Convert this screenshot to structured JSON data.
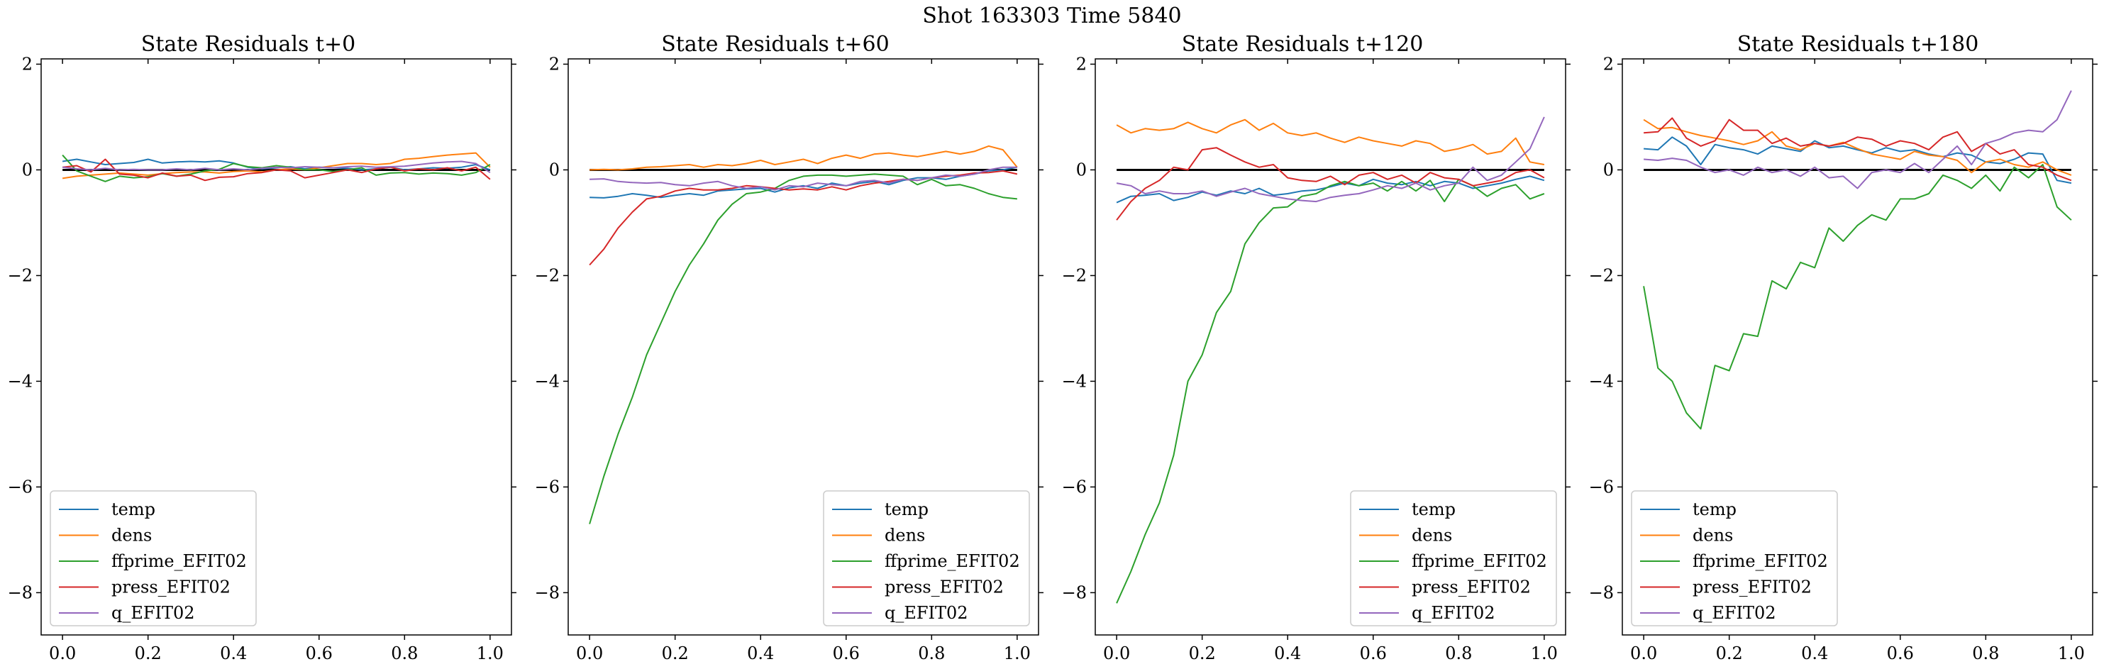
{
  "figure": {
    "suptitle": "Shot 163303   Time 5840"
  },
  "chart_data": [
    {
      "type": "line",
      "title": "State Residuals t+0",
      "xlabel": "",
      "ylabel": "",
      "xlim": [
        -0.05,
        1.05
      ],
      "ylim": [
        -8.8,
        2.1
      ],
      "xticks": [
        "0.0",
        "0.2",
        "0.4",
        "0.6",
        "0.8",
        "1.0"
      ],
      "yticks": [
        "2",
        "0",
        "−2",
        "−4",
        "−6",
        "−8"
      ],
      "hline": 0,
      "legend_position": "lower left",
      "x_step": 0.0333,
      "series": [
        {
          "name": "temp",
          "color": "#1f77b4",
          "values": [
            0.16,
            0.2,
            0.15,
            0.1,
            0.12,
            0.14,
            0.2,
            0.13,
            0.15,
            0.16,
            0.15,
            0.17,
            0.13,
            0.05,
            0.02,
            0.04,
            0.06,
            0.02,
            0.05,
            0.04,
            0.03,
            0.0,
            0.02,
            0.05,
            0.0,
            0.02,
            0.04,
            0.03,
            0.05,
            0.1,
            0.0
          ]
        },
        {
          "name": "dens",
          "color": "#ff7f0e",
          "values": [
            -0.16,
            -0.12,
            -0.1,
            -0.08,
            -0.06,
            -0.08,
            -0.1,
            -0.07,
            -0.05,
            -0.04,
            -0.04,
            -0.06,
            -0.03,
            -0.02,
            -0.04,
            0.0,
            0.02,
            0.0,
            0.04,
            0.08,
            0.12,
            0.12,
            0.1,
            0.12,
            0.2,
            0.22,
            0.25,
            0.28,
            0.3,
            0.32,
            0.05
          ]
        },
        {
          "name": "ffprime_EFIT02",
          "color": "#2ca02c",
          "values": [
            0.28,
            -0.02,
            -0.12,
            -0.22,
            -0.12,
            -0.15,
            -0.13,
            -0.07,
            -0.12,
            -0.08,
            -0.02,
            0.01,
            0.12,
            0.06,
            0.04,
            0.08,
            0.05,
            0.0,
            0.0,
            -0.03,
            0.0,
            0.04,
            -0.1,
            -0.06,
            -0.05,
            -0.08,
            -0.06,
            -0.07,
            -0.1,
            -0.05,
            0.1
          ]
        },
        {
          "name": "press_EFIT02",
          "color": "#d62728",
          "values": [
            0.05,
            0.08,
            -0.04,
            0.2,
            -0.08,
            -0.1,
            -0.15,
            -0.06,
            -0.12,
            -0.1,
            -0.2,
            -0.14,
            -0.13,
            -0.07,
            -0.05,
            0.0,
            -0.02,
            -0.15,
            -0.1,
            -0.05,
            0.0,
            -0.05,
            0.02,
            0.05,
            -0.02,
            0.02,
            0.0,
            0.04,
            -0.02,
            0.05,
            -0.18
          ]
        },
        {
          "name": "q_EFIT02",
          "color": "#9467bd",
          "values": [
            0.05,
            0.02,
            0.0,
            0.03,
            0.0,
            0.01,
            0.0,
            0.0,
            0.02,
            0.0,
            0.03,
            0.0,
            0.02,
            0.0,
            0.03,
            0.05,
            0.04,
            0.06,
            0.05,
            0.04,
            0.06,
            0.07,
            0.05,
            0.06,
            0.07,
            0.1,
            0.13,
            0.15,
            0.16,
            0.12,
            -0.05
          ]
        }
      ]
    },
    {
      "type": "line",
      "title": "State Residuals t+60",
      "xlabel": "",
      "ylabel": "",
      "xlim": [
        -0.05,
        1.05
      ],
      "ylim": [
        -8.8,
        2.1
      ],
      "xticks": [
        "0.0",
        "0.2",
        "0.4",
        "0.6",
        "0.8",
        "1.0"
      ],
      "yticks": [
        "2",
        "0",
        "−2",
        "−4",
        "−6",
        "−8"
      ],
      "hline": 0,
      "legend_position": "lower right",
      "x_step": 0.0333,
      "series": [
        {
          "name": "temp",
          "color": "#1f77b4",
          "values": [
            -0.52,
            -0.53,
            -0.5,
            -0.45,
            -0.48,
            -0.52,
            -0.48,
            -0.45,
            -0.48,
            -0.4,
            -0.38,
            -0.36,
            -0.35,
            -0.42,
            -0.34,
            -0.3,
            -0.35,
            -0.25,
            -0.3,
            -0.25,
            -0.22,
            -0.28,
            -0.2,
            -0.15,
            -0.15,
            -0.18,
            -0.12,
            -0.08,
            -0.02,
            0.0,
            0.05
          ]
        },
        {
          "name": "dens",
          "color": "#ff7f0e",
          "values": [
            0.0,
            0.01,
            0.0,
            0.02,
            0.05,
            0.06,
            0.08,
            0.1,
            0.05,
            0.1,
            0.08,
            0.12,
            0.18,
            0.1,
            0.15,
            0.2,
            0.12,
            0.22,
            0.28,
            0.22,
            0.3,
            0.32,
            0.28,
            0.25,
            0.3,
            0.35,
            0.3,
            0.35,
            0.45,
            0.38,
            0.05
          ]
        },
        {
          "name": "ffprime_EFIT02",
          "color": "#2ca02c",
          "values": [
            -6.7,
            -5.8,
            -5.0,
            -4.3,
            -3.5,
            -2.9,
            -2.3,
            -1.8,
            -1.4,
            -0.95,
            -0.65,
            -0.45,
            -0.42,
            -0.35,
            -0.2,
            -0.12,
            -0.1,
            -0.1,
            -0.12,
            -0.1,
            -0.08,
            -0.1,
            -0.12,
            -0.28,
            -0.18,
            -0.3,
            -0.28,
            -0.35,
            -0.45,
            -0.52,
            -0.55
          ]
        },
        {
          "name": "press_EFIT02",
          "color": "#d62728",
          "values": [
            -1.8,
            -1.5,
            -1.1,
            -0.8,
            -0.55,
            -0.5,
            -0.4,
            -0.35,
            -0.38,
            -0.38,
            -0.35,
            -0.3,
            -0.32,
            -0.35,
            -0.38,
            -0.36,
            -0.38,
            -0.32,
            -0.38,
            -0.3,
            -0.25,
            -0.22,
            -0.18,
            -0.2,
            -0.15,
            -0.12,
            -0.1,
            -0.06,
            -0.05,
            -0.02,
            -0.08
          ]
        },
        {
          "name": "q_EFIT02",
          "color": "#9467bd",
          "values": [
            -0.18,
            -0.17,
            -0.22,
            -0.24,
            -0.25,
            -0.24,
            -0.28,
            -0.3,
            -0.25,
            -0.22,
            -0.3,
            -0.35,
            -0.32,
            -0.38,
            -0.3,
            -0.32,
            -0.25,
            -0.28,
            -0.3,
            -0.22,
            -0.2,
            -0.25,
            -0.18,
            -0.2,
            -0.15,
            -0.1,
            -0.12,
            -0.08,
            0.0,
            0.05,
            0.05
          ]
        }
      ]
    },
    {
      "type": "line",
      "title": "State Residuals t+120",
      "xlabel": "",
      "ylabel": "",
      "xlim": [
        -0.05,
        1.05
      ],
      "ylim": [
        -8.8,
        2.1
      ],
      "xticks": [
        "0.0",
        "0.2",
        "0.4",
        "0.6",
        "0.8",
        "1.0"
      ],
      "yticks": [
        "2",
        "0",
        "−2",
        "−4",
        "−6",
        "−8"
      ],
      "hline": 0,
      "legend_position": "lower right",
      "x_step": 0.0333,
      "series": [
        {
          "name": "temp",
          "color": "#1f77b4",
          "values": [
            -0.62,
            -0.5,
            -0.48,
            -0.45,
            -0.58,
            -0.52,
            -0.42,
            -0.48,
            -0.4,
            -0.45,
            -0.35,
            -0.48,
            -0.45,
            -0.4,
            -0.38,
            -0.32,
            -0.25,
            -0.3,
            -0.18,
            -0.25,
            -0.28,
            -0.22,
            -0.3,
            -0.22,
            -0.25,
            -0.35,
            -0.3,
            -0.25,
            -0.18,
            -0.12,
            -0.2
          ]
        },
        {
          "name": "dens",
          "color": "#ff7f0e",
          "values": [
            0.85,
            0.7,
            0.78,
            0.75,
            0.78,
            0.9,
            0.78,
            0.7,
            0.85,
            0.95,
            0.75,
            0.88,
            0.7,
            0.65,
            0.7,
            0.6,
            0.52,
            0.62,
            0.55,
            0.5,
            0.45,
            0.55,
            0.5,
            0.35,
            0.4,
            0.48,
            0.3,
            0.35,
            0.6,
            0.15,
            0.1
          ]
        },
        {
          "name": "ffprime_EFIT02",
          "color": "#2ca02c",
          "values": [
            -8.2,
            -7.6,
            -6.9,
            -6.3,
            -5.4,
            -4.0,
            -3.5,
            -2.7,
            -2.3,
            -1.4,
            -1.0,
            -0.72,
            -0.7,
            -0.5,
            -0.45,
            -0.3,
            -0.22,
            -0.3,
            -0.25,
            -0.4,
            -0.22,
            -0.4,
            -0.2,
            -0.6,
            -0.18,
            -0.3,
            -0.5,
            -0.35,
            -0.28,
            -0.55,
            -0.45
          ]
        },
        {
          "name": "press_EFIT02",
          "color": "#d62728",
          "values": [
            -0.95,
            -0.6,
            -0.35,
            -0.2,
            0.05,
            0.0,
            0.38,
            0.42,
            0.28,
            0.15,
            0.05,
            0.1,
            -0.15,
            -0.2,
            -0.22,
            -0.12,
            -0.28,
            -0.1,
            -0.05,
            -0.18,
            -0.1,
            -0.25,
            -0.05,
            -0.15,
            -0.18,
            -0.3,
            -0.25,
            -0.2,
            -0.05,
            0.0,
            -0.15
          ]
        },
        {
          "name": "q_EFIT02",
          "color": "#9467bd",
          "values": [
            -0.25,
            -0.3,
            -0.45,
            -0.4,
            -0.45,
            -0.45,
            -0.4,
            -0.5,
            -0.42,
            -0.35,
            -0.45,
            -0.5,
            -0.55,
            -0.58,
            -0.6,
            -0.52,
            -0.48,
            -0.45,
            -0.38,
            -0.3,
            -0.35,
            -0.25,
            -0.38,
            -0.3,
            -0.25,
            0.05,
            -0.2,
            -0.1,
            0.15,
            0.4,
            1.0
          ]
        }
      ]
    },
    {
      "type": "line",
      "title": "State Residuals t+180",
      "xlabel": "",
      "ylabel": "",
      "xlim": [
        -0.05,
        1.05
      ],
      "ylim": [
        -8.8,
        2.1
      ],
      "xticks": [
        "0.0",
        "0.2",
        "0.4",
        "0.6",
        "0.8",
        "1.0"
      ],
      "yticks": [
        "2",
        "0",
        "−2",
        "−4",
        "−6",
        "−8"
      ],
      "hline": 0,
      "legend_position": "lower left",
      "x_step": 0.0333,
      "series": [
        {
          "name": "temp",
          "color": "#1f77b4",
          "values": [
            0.4,
            0.38,
            0.62,
            0.45,
            0.1,
            0.48,
            0.42,
            0.38,
            0.3,
            0.45,
            0.4,
            0.35,
            0.55,
            0.42,
            0.45,
            0.38,
            0.32,
            0.42,
            0.35,
            0.38,
            0.3,
            0.25,
            0.32,
            0.28,
            0.15,
            0.12,
            0.2,
            0.32,
            0.3,
            -0.2,
            -0.25
          ]
        },
        {
          "name": "dens",
          "color": "#ff7f0e",
          "values": [
            0.95,
            0.78,
            0.8,
            0.72,
            0.65,
            0.6,
            0.55,
            0.48,
            0.55,
            0.72,
            0.45,
            0.38,
            0.5,
            0.45,
            0.52,
            0.4,
            0.3,
            0.25,
            0.2,
            0.35,
            0.28,
            0.25,
            0.18,
            -0.05,
            0.15,
            0.2,
            0.1,
            0.05,
            0.15,
            0.0,
            -0.1
          ]
        },
        {
          "name": "ffprime_EFIT02",
          "color": "#2ca02c",
          "values": [
            -2.2,
            -3.75,
            -4.0,
            -4.6,
            -4.9,
            -3.7,
            -3.8,
            -3.1,
            -3.15,
            -2.1,
            -2.25,
            -1.75,
            -1.85,
            -1.1,
            -1.35,
            -1.05,
            -0.85,
            -0.95,
            -0.55,
            -0.55,
            -0.45,
            -0.1,
            -0.2,
            -0.35,
            -0.1,
            -0.4,
            0.05,
            -0.15,
            0.1,
            -0.7,
            -0.95
          ]
        },
        {
          "name": "press_EFIT02",
          "color": "#d62728",
          "values": [
            0.7,
            0.72,
            0.98,
            0.6,
            0.45,
            0.55,
            0.95,
            0.75,
            0.75,
            0.5,
            0.6,
            0.45,
            0.5,
            0.45,
            0.5,
            0.62,
            0.58,
            0.45,
            0.55,
            0.5,
            0.38,
            0.62,
            0.72,
            0.35,
            0.5,
            0.3,
            0.38,
            0.1,
            0.05,
            -0.1,
            -0.2
          ]
        },
        {
          "name": "q_EFIT02",
          "color": "#9467bd",
          "values": [
            0.2,
            0.18,
            0.22,
            0.18,
            0.05,
            -0.05,
            0.0,
            -0.1,
            0.05,
            -0.05,
            0.0,
            -0.12,
            0.05,
            -0.15,
            -0.12,
            -0.35,
            -0.05,
            0.0,
            -0.05,
            0.12,
            -0.05,
            0.2,
            0.45,
            0.1,
            0.5,
            0.58,
            0.7,
            0.75,
            0.72,
            0.95,
            1.5
          ]
        }
      ]
    }
  ]
}
